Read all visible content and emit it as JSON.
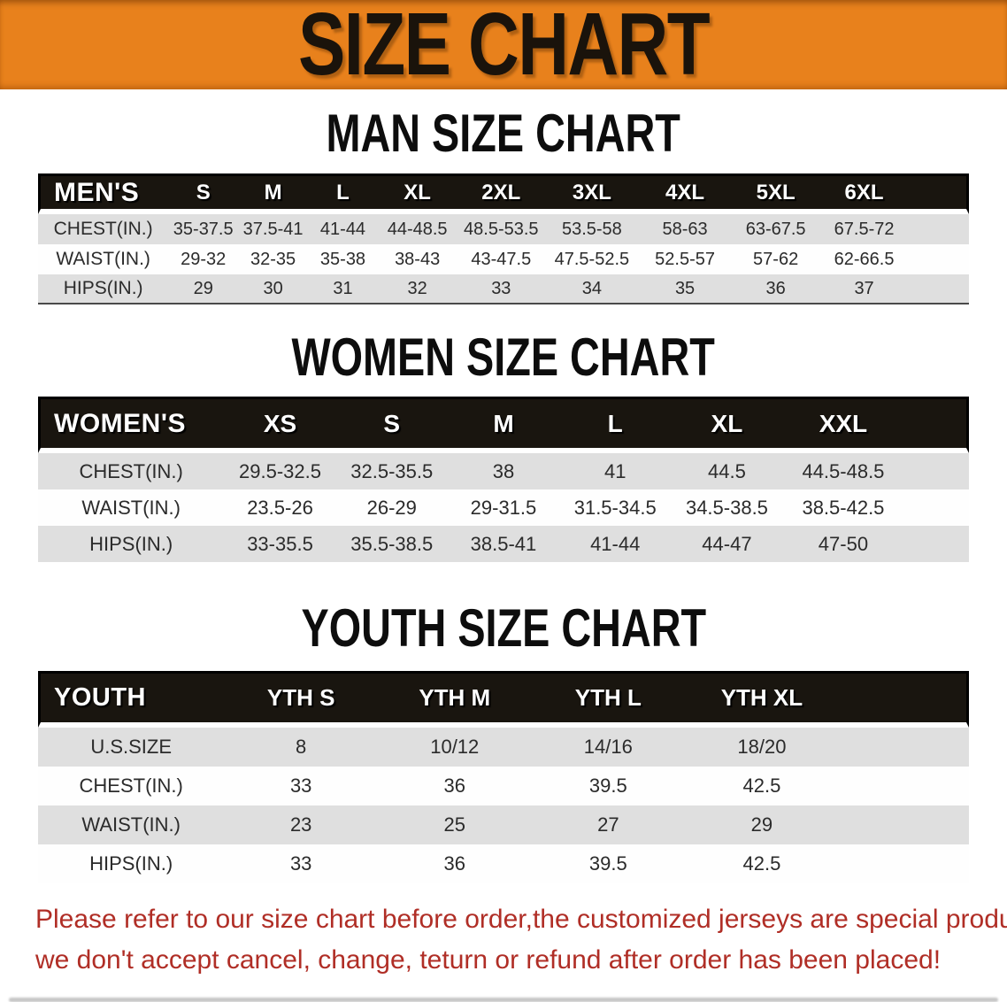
{
  "banner": {
    "title": "SIZE CHART"
  },
  "sections": [
    {
      "heading": "MAN SIZE CHART",
      "table": {
        "corner_label": "MEN'S",
        "sizes": [
          "S",
          "M",
          "L",
          "XL",
          "2XL",
          "3XL",
          "4XL",
          "5XL",
          "6XL"
        ],
        "rows": [
          {
            "label": "CHEST(IN.)",
            "values": [
              "35-37.5",
              "37.5-41",
              "41-44",
              "44-48.5",
              "48.5-53.5",
              "53.5-58",
              "58-63",
              "63-67.5",
              "67.5-72"
            ]
          },
          {
            "label": "WAIST(IN.)",
            "values": [
              "29-32",
              "32-35",
              "35-38",
              "38-43",
              "43-47.5",
              "47.5-52.5",
              "52.5-57",
              "57-62",
              "62-66.5"
            ]
          },
          {
            "label": "HIPS(IN.)",
            "values": [
              "29",
              "30",
              "31",
              "32",
              "33",
              "34",
              "35",
              "36",
              "37"
            ]
          }
        ]
      }
    },
    {
      "heading": "WOMEN SIZE CHART",
      "table": {
        "corner_label": "WOMEN'S",
        "sizes": [
          "XS",
          "S",
          "M",
          "L",
          "XL",
          "XXL"
        ],
        "rows": [
          {
            "label": "CHEST(IN.)",
            "values": [
              "29.5-32.5",
              "32.5-35.5",
              "38",
              "41",
              "44.5",
              "44.5-48.5"
            ]
          },
          {
            "label": "WAIST(IN.)",
            "values": [
              "23.5-26",
              "26-29",
              "29-31.5",
              "31.5-34.5",
              "34.5-38.5",
              "38.5-42.5"
            ]
          },
          {
            "label": "HIPS(IN.)",
            "values": [
              "33-35.5",
              "35.5-38.5",
              "38.5-41",
              "41-44",
              "44-47",
              "47-50"
            ]
          }
        ]
      }
    },
    {
      "heading": "YOUTH SIZE CHART",
      "table": {
        "corner_label": "YOUTH",
        "sizes": [
          "YTH S",
          "YTH M",
          "YTH L",
          "YTH XL"
        ],
        "rows": [
          {
            "label": "U.S.SIZE",
            "values": [
              "8",
              "10/12",
              "14/16",
              "18/20"
            ]
          },
          {
            "label": "CHEST(IN.)",
            "values": [
              "33",
              "36",
              "39.5",
              "42.5"
            ]
          },
          {
            "label": "WAIST(IN.)",
            "values": [
              "23",
              "25",
              "27",
              "29"
            ]
          },
          {
            "label": "HIPS(IN.)",
            "values": [
              "33",
              "36",
              "39.5",
              "42.5"
            ]
          }
        ]
      }
    }
  ],
  "disclaimer": {
    "line1": "Please refer to our size chart before order,the customized jerseys are special products,",
    "line2": "we don't accept cancel, change, teturn or refund after order has been placed!"
  },
  "colors": {
    "banner_bg": "#E8811C",
    "banner_text": "#1A130B",
    "header_bg": "#19150F",
    "header_text": "#FFFFFF",
    "row_gray": "#DFDFDF",
    "row_white": "#FEFEFE",
    "cell_text": "#2B2B2B",
    "disclaimer_red": "#B02E26"
  }
}
